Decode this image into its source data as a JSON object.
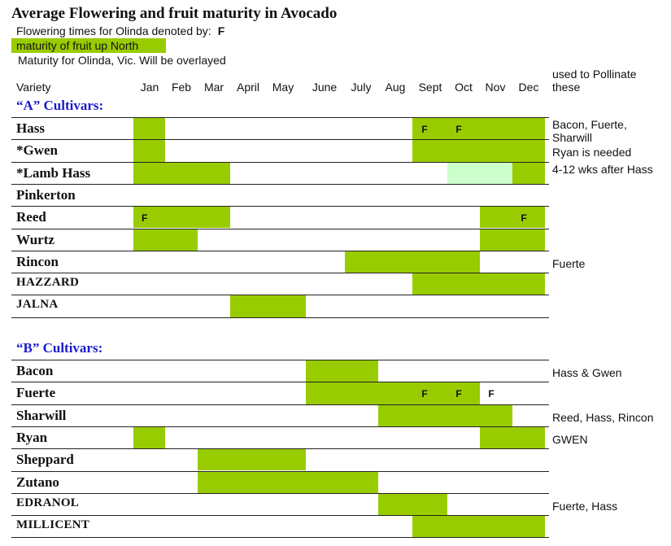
{
  "page": {
    "title": "Average Flowering and fruit maturity in Avocado",
    "flowering_note": "Flowering times for Olinda denoted by:",
    "flowering_symbol": "F",
    "legend_north": "maturity of fruit up North",
    "note_vic": "Maturity for Olinda, Vic. Will be overlayed",
    "header_variety": "Variety",
    "header_pollinate": "used to Pollinate these"
  },
  "colors": {
    "maturity_north": "#99cc00",
    "maturity_olinda": "#ccffcc"
  },
  "chart_data": {
    "type": "table",
    "title": "Average Flowering and fruit maturity in Avocado",
    "months": [
      "Jan",
      "Feb",
      "Mar",
      "April",
      "May",
      "June",
      "July",
      "Aug",
      "Sept",
      "Oct",
      "Nov",
      "Dec"
    ],
    "groups": [
      {
        "label": "“A” Cultivars:",
        "varieties": [
          {
            "name": "Hass",
            "maturity": [
              [
                1,
                1
              ],
              [
                9,
                12
              ]
            ],
            "flowering": [
              9,
              10
            ],
            "pollinates": "Bacon, Fuerte, Sharwill"
          },
          {
            "name": "*Gwen",
            "maturity": [
              [
                1,
                1
              ],
              [
                9,
                12
              ]
            ],
            "flowering": [],
            "pollinates": "Ryan is needed"
          },
          {
            "name": "*Lamb Hass",
            "maturity": [
              [
                1,
                3
              ],
              [
                12,
                12
              ]
            ],
            "maturity_olinda": [
              [
                10,
                11
              ]
            ],
            "flowering": [],
            "pollinates": "4-12 wks after Hass"
          },
          {
            "name": "Pinkerton",
            "maturity": [],
            "flowering": [],
            "pollinates": ""
          },
          {
            "name": "Reed",
            "maturity": [
              [
                1,
                3
              ],
              [
                11,
                12
              ]
            ],
            "flowering": [
              1,
              12
            ],
            "pollinates": ""
          },
          {
            "name": "Wurtz",
            "maturity": [
              [
                1,
                2
              ],
              [
                11,
                12
              ]
            ],
            "flowering": [],
            "pollinates": ""
          },
          {
            "name": "Rincon",
            "maturity": [
              [
                7,
                10
              ]
            ],
            "flowering": [],
            "pollinates": "Fuerte"
          },
          {
            "name": "HAZZARD",
            "style": "small",
            "maturity": [
              [
                9,
                12
              ]
            ],
            "flowering": [],
            "pollinates": ""
          },
          {
            "name": "JALNA",
            "style": "small",
            "maturity": [
              [
                4,
                5
              ]
            ],
            "flowering": [],
            "pollinates": ""
          }
        ]
      },
      {
        "label": "“B” Cultivars:",
        "varieties": [
          {
            "name": "Bacon",
            "maturity": [
              [
                6,
                7
              ]
            ],
            "flowering": [],
            "pollinates": "Hass & Gwen"
          },
          {
            "name": "Fuerte",
            "maturity": [
              [
                6,
                10
              ]
            ],
            "flowering": [
              9,
              10,
              11
            ],
            "pollinates": ""
          },
          {
            "name": "Sharwill",
            "maturity": [
              [
                8,
                11
              ]
            ],
            "flowering": [],
            "pollinates": "Reed, Hass, Rincon"
          },
          {
            "name": "Ryan",
            "maturity": [
              [
                1,
                1
              ],
              [
                11,
                12
              ]
            ],
            "flowering": [],
            "pollinates": "GWEN"
          },
          {
            "name": "Sheppard",
            "maturity": [
              [
                3,
                5
              ]
            ],
            "flowering": [],
            "pollinates": ""
          },
          {
            "name": "Zutano",
            "maturity": [
              [
                3,
                7
              ]
            ],
            "flowering": [],
            "pollinates": ""
          },
          {
            "name": "EDRANOL",
            "style": "small",
            "maturity": [
              [
                8,
                9
              ]
            ],
            "flowering": [],
            "pollinates": "Fuerte, Hass"
          },
          {
            "name": "MILLICENT",
            "style": "small",
            "maturity": [
              [
                9,
                12
              ]
            ],
            "flowering": [],
            "pollinates": ""
          }
        ]
      }
    ]
  }
}
